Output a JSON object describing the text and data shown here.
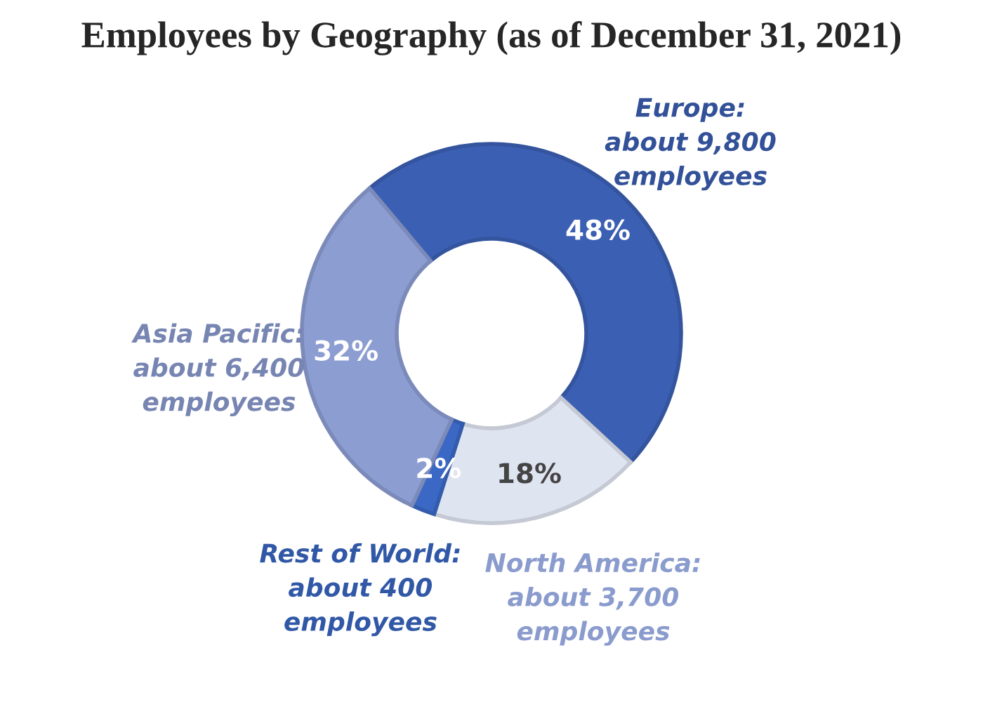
{
  "chart_data": {
    "type": "donut",
    "title": "Employees by Geography (as of December 31, 2021)",
    "categories": [
      "Europe:\nabout 9,800\nemployees",
      "North America:\nabout 3,700\nemployees",
      "Rest of World:\nabout 400\nemployees",
      "Asia Pacific:\nabout 6,400\nemployees"
    ],
    "values": [
      48,
      18,
      2,
      32
    ],
    "colors": [
      "#3b5fb3",
      "#dfe4f1",
      "#3a68c4",
      "#8c9dd2"
    ],
    "value_labels": [
      "48%",
      "18%",
      "2%",
      "32%"
    ],
    "legend": false
  }
}
